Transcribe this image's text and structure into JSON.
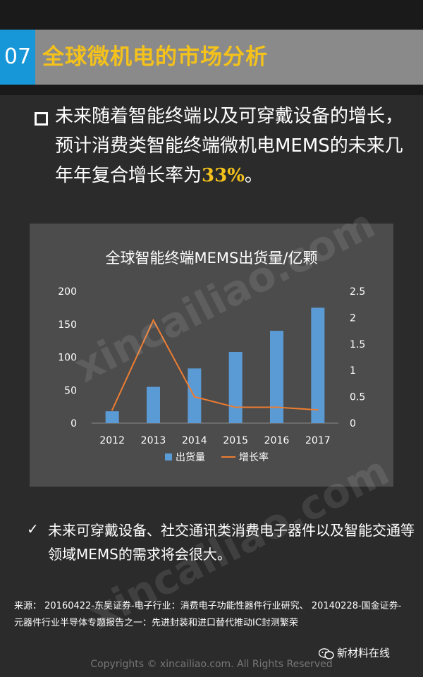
{
  "header": {
    "section_number": "07",
    "title": "全球微机电的市场分析"
  },
  "intro": {
    "text_before": "未来随着智能终端以及可穿戴设备的增长，预计消费类智能终端微机电MEMS的未来几年年复合增长率为",
    "highlight": "33%",
    "text_after": "。"
  },
  "chart_data": {
    "type": "bar",
    "title": "全球智能终端MEMS出货量/亿颗",
    "categories": [
      "2012",
      "2013",
      "2014",
      "2015",
      "2016",
      "2017"
    ],
    "series": [
      {
        "name": "出货量",
        "type": "bar",
        "axis": "left",
        "color": "#5b9bd5",
        "values": [
          18,
          55,
          83,
          108,
          140,
          175
        ]
      },
      {
        "name": "增长率",
        "type": "line",
        "axis": "right",
        "color": "#ed7d31",
        "values": [
          0.25,
          1.95,
          0.5,
          0.3,
          0.3,
          0.25
        ]
      }
    ],
    "y_left": {
      "min": 0,
      "max": 200,
      "ticks": [
        "0",
        "50",
        "100",
        "150",
        "200"
      ]
    },
    "y_right": {
      "min": 0,
      "max": 2.5,
      "ticks": [
        "0",
        "0.5",
        "1",
        "1.5",
        "2",
        "2.5"
      ]
    },
    "legend": "bottom",
    "grid": false
  },
  "note": {
    "text": "未来可穿戴设备、社交通讯类消费电子器件以及智能交通等领域MEMS的需求将会很大。"
  },
  "source": {
    "text": "来源： 20160422-东吴证券-电子行业：消费电子功能性器件行业研究、 20140228-国金证券-元器件行业半导体专题报告之一：先进封装和进口替代推动IC封测繁荣"
  },
  "wechat": {
    "name": "新材料在线",
    "icon": "wechat-icon"
  },
  "watermark": {
    "text": "xincailiao.com"
  },
  "copyright": {
    "text": "Copyrights © xincailiao.com. All Rights Reserved"
  }
}
